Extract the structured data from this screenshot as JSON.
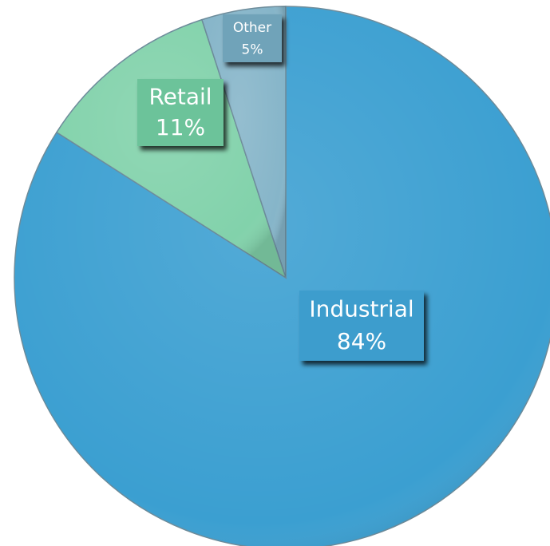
{
  "chart_data": {
    "type": "pie",
    "categories": [
      "Industrial",
      "Retail",
      "Other"
    ],
    "values": [
      84,
      11,
      5
    ],
    "value_labels": [
      "84%",
      "11%",
      "5%"
    ],
    "colors": [
      "#3b9fd1",
      "#82d2ab",
      "#86b5c9"
    ]
  }
}
